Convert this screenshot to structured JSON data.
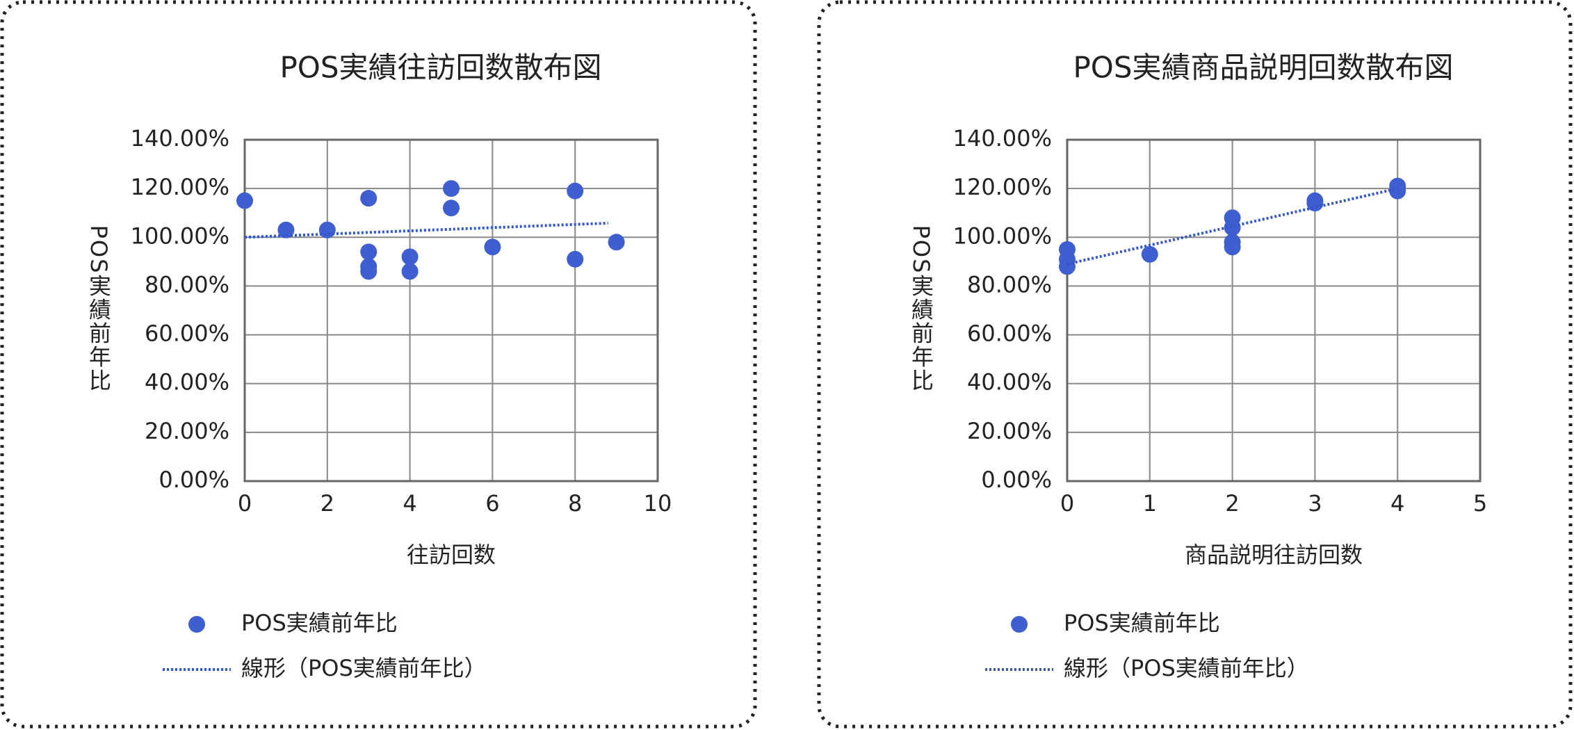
{
  "chart_data": [
    {
      "type": "scatter",
      "title": "POS実績往訪回数散布図",
      "x_label": "往訪回数",
      "y_label": "POS実績前年比",
      "series": [
        {
          "name": "POS実績前年比",
          "color": "#3f5fd0",
          "x": [
            0,
            1,
            2,
            3,
            3,
            3,
            3,
            4,
            4,
            5,
            5,
            6,
            8,
            8,
            9
          ],
          "values": [
            115,
            103,
            103,
            116,
            94,
            88,
            86,
            92,
            86,
            120,
            112,
            96,
            119,
            91,
            98
          ]
        }
      ],
      "trendline": {
        "name": "線形（POS実績前年比）",
        "color": "#3355cc",
        "x": [
          0,
          8.8
        ],
        "values": [
          100,
          105.8
        ]
      },
      "xlim": [
        0,
        10
      ],
      "xticks": [
        0,
        2,
        4,
        6,
        8,
        10
      ],
      "ylim": [
        0,
        140
      ],
      "yticks": [
        {
          "value": 0,
          "label": "0.00%"
        },
        {
          "value": 20,
          "label": "20.00%"
        },
        {
          "value": 40,
          "label": "40.00%"
        },
        {
          "value": 60,
          "label": "60.00%"
        },
        {
          "value": 80,
          "label": "80.00%"
        },
        {
          "value": 100,
          "label": "100.00%"
        },
        {
          "value": 120,
          "label": "120.00%"
        },
        {
          "value": 140,
          "label": "140.00%"
        }
      ],
      "grid": true
    },
    {
      "type": "scatter",
      "title": "POS実績商品説明回数散布図",
      "x_label": "商品説明往訪回数",
      "y_label": "POS実績前年比",
      "series": [
        {
          "name": "POS実績前年比",
          "color": "#3f5fd0",
          "x": [
            0,
            0,
            0,
            1,
            2,
            2,
            2,
            2,
            3,
            3,
            4,
            4
          ],
          "values": [
            95,
            91,
            88,
            93,
            108,
            104,
            98,
            96,
            115,
            114,
            121,
            119
          ]
        }
      ],
      "trendline": {
        "name": "線形（POS実績前年比）",
        "color": "#3355cc",
        "x": [
          0,
          4
        ],
        "values": [
          89,
          120
        ]
      },
      "xlim": [
        0,
        5
      ],
      "xticks": [
        0,
        1,
        2,
        3,
        4,
        5
      ],
      "ylim": [
        0,
        140
      ],
      "yticks": [
        {
          "value": 0,
          "label": "0.00%"
        },
        {
          "value": 20,
          "label": "20.00%"
        },
        {
          "value": 40,
          "label": "40.00%"
        },
        {
          "value": 60,
          "label": "60.00%"
        },
        {
          "value": 80,
          "label": "80.00%"
        },
        {
          "value": 100,
          "label": "100.00%"
        },
        {
          "value": 120,
          "label": "120.00%"
        },
        {
          "value": 140,
          "label": "140.00%"
        }
      ],
      "grid": true
    }
  ]
}
